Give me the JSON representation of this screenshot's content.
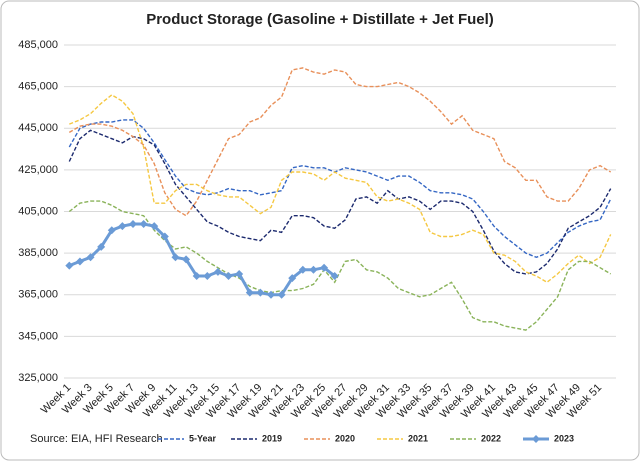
{
  "chart_data": {
    "type": "line",
    "title": "Product Storage (Gasoline + Distillate + Jet Fuel)",
    "annotation": "Source: EIA, HFI Research",
    "categories": [
      "Week 1",
      null,
      "Week 3",
      null,
      "Week 5",
      null,
      "Week 7",
      null,
      "Week 9",
      null,
      "Week 11",
      null,
      "Week 13",
      null,
      "Week 15",
      null,
      "Week 17",
      null,
      "Week 19",
      null,
      "Week 21",
      null,
      "Week 23",
      null,
      "Week 25",
      null,
      "Week 27",
      null,
      "Week 29",
      null,
      "Week 31",
      null,
      "Week 33",
      null,
      "Week 35",
      null,
      "Week 37",
      null,
      "Week 39",
      null,
      "Week 41",
      null,
      "Week 43",
      null,
      "Week 45",
      null,
      "Week 47",
      null,
      "Week 49",
      null,
      "Week 51",
      null
    ],
    "ylim": [
      325000,
      485000
    ],
    "yticks": [
      {
        "value": 325000,
        "label": "325,000"
      },
      {
        "value": 345000,
        "label": "345,000"
      },
      {
        "value": 365000,
        "label": "365,000"
      },
      {
        "value": 385000,
        "label": "385,000"
      },
      {
        "value": 405000,
        "label": "405,000"
      },
      {
        "value": 425000,
        "label": "425,000"
      },
      {
        "value": 445000,
        "label": "445,000"
      },
      {
        "value": 465000,
        "label": "465,000"
      },
      {
        "value": 485000,
        "label": "485,000"
      }
    ],
    "grid": true,
    "legend": "bottom",
    "series": [
      {
        "name": "5-Year",
        "color": "#3567c4",
        "dashed": true,
        "values": [
          436000,
          445000,
          447000,
          448000,
          448000,
          449000,
          449000,
          445000,
          438000,
          430000,
          422000,
          416000,
          414000,
          413000,
          414000,
          416000,
          415000,
          415000,
          413000,
          414000,
          415000,
          426000,
          427000,
          426000,
          426000,
          424000,
          426000,
          425000,
          424000,
          422000,
          420000,
          422000,
          422000,
          419000,
          415000,
          414000,
          414000,
          413000,
          411000,
          405000,
          398000,
          393000,
          389000,
          385000,
          383000,
          385000,
          390000,
          395000,
          398000,
          400000,
          401000,
          411000
        ]
      },
      {
        "name": "2019",
        "color": "#1c2a6e",
        "dashed": true,
        "values": [
          429000,
          440000,
          444000,
          442000,
          440000,
          438000,
          441000,
          440000,
          437000,
          428000,
          418000,
          412000,
          406000,
          400000,
          398000,
          395000,
          393000,
          392000,
          391000,
          396000,
          395000,
          403000,
          403000,
          402000,
          398000,
          397000,
          401000,
          411000,
          412000,
          409000,
          415000,
          411000,
          412000,
          410000,
          406000,
          410000,
          410000,
          409000,
          405000,
          396000,
          386000,
          380000,
          376000,
          375000,
          376000,
          380000,
          387000,
          397000,
          400000,
          403000,
          407000,
          416000
        ]
      },
      {
        "name": "2020",
        "color": "#e8905a",
        "dashed": true,
        "values": [
          443000,
          446000,
          447000,
          447000,
          446000,
          444000,
          441000,
          437000,
          428000,
          414000,
          406000,
          403000,
          410000,
          420000,
          430000,
          440000,
          442000,
          448000,
          450000,
          456000,
          460000,
          473000,
          474000,
          472000,
          471000,
          473000,
          472000,
          466000,
          465000,
          465000,
          466000,
          467000,
          465000,
          462000,
          458000,
          453000,
          447000,
          451000,
          444000,
          442000,
          440000,
          429000,
          426000,
          420000,
          420000,
          412000,
          410000,
          410000,
          416000,
          425000,
          427000,
          424000
        ]
      },
      {
        "name": "2021",
        "color": "#f5c842",
        "dashed": true,
        "values": [
          447000,
          449000,
          452000,
          457000,
          461000,
          458000,
          452000,
          436000,
          409000,
          409000,
          415000,
          418000,
          418000,
          415000,
          413000,
          412000,
          412000,
          408000,
          404000,
          407000,
          420000,
          424000,
          424000,
          423000,
          420000,
          424000,
          421000,
          420000,
          419000,
          412000,
          410000,
          411000,
          409000,
          406000,
          395000,
          393000,
          393000,
          394000,
          396000,
          394000,
          385000,
          384000,
          381000,
          376000,
          374000,
          371000,
          375000,
          380000,
          384000,
          380000,
          383000,
          394000
        ]
      },
      {
        "name": "2022",
        "color": "#8ab35a",
        "dashed": true,
        "values": [
          405000,
          409000,
          410000,
          410000,
          408000,
          405000,
          404000,
          403000,
          396000,
          391000,
          387000,
          388000,
          385000,
          381000,
          378000,
          375000,
          373000,
          369000,
          367000,
          366000,
          367000,
          367000,
          368000,
          370000,
          377000,
          371000,
          381000,
          382000,
          377000,
          376000,
          373000,
          368000,
          366000,
          364000,
          365000,
          368000,
          371000,
          363000,
          354000,
          352000,
          352000,
          350000,
          349000,
          348000,
          352000,
          358000,
          364000,
          377000,
          381000,
          381000,
          378000,
          375000
        ]
      },
      {
        "name": "2023",
        "color": "#6b9bd6",
        "dashed": false,
        "marker": "diamond",
        "values": [
          379000,
          381000,
          383000,
          388000,
          396000,
          398000,
          399000,
          399000,
          398000,
          393000,
          383000,
          382000,
          374000,
          374000,
          376000,
          374000,
          375000,
          366000,
          366000,
          365000,
          365000,
          373000,
          377000,
          377000,
          378000,
          374000,
          null,
          null,
          null,
          null,
          null,
          null,
          null,
          null,
          null,
          null,
          null,
          null,
          null,
          null,
          null,
          null,
          null,
          null,
          null,
          null,
          null,
          null,
          null,
          null,
          null,
          null
        ]
      }
    ]
  }
}
